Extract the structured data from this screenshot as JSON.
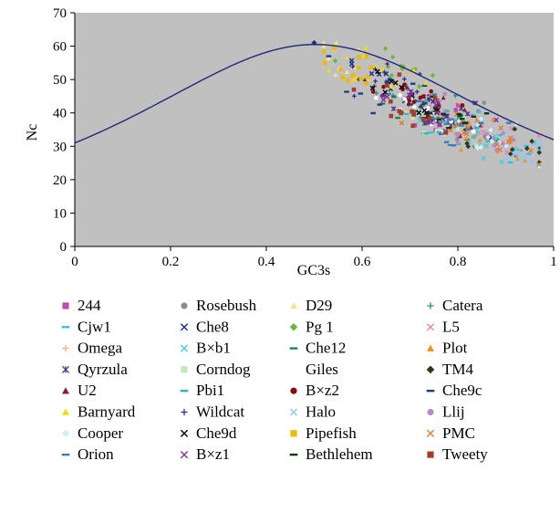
{
  "chart_data": {
    "type": "scatter",
    "title": "",
    "xlabel": "GC3s",
    "ylabel": "Nc",
    "xlim": [
      0,
      1
    ],
    "ylim": [
      0,
      70
    ],
    "x_ticks": [
      "0",
      "0.2",
      "0.4",
      "0.6",
      "0.8",
      "1"
    ],
    "y_ticks": [
      "0",
      "10",
      "20",
      "30",
      "40",
      "50",
      "60",
      "70"
    ],
    "x_tick_values": [
      0,
      0.2,
      0.4,
      0.6,
      0.8,
      1
    ],
    "y_tick_values": [
      0,
      10,
      20,
      30,
      40,
      50,
      60,
      70
    ],
    "background": "#c0c0c0",
    "grid": false,
    "legend_position": "bottom",
    "expected_curve": {
      "description": "Nc = 2 + s + 29/(s^2 + (1-s)^2)",
      "color": "#1f2a7a",
      "marker_x": 0.5,
      "marker_y": 61
    },
    "series": [
      {
        "name": "244",
        "marker": "square",
        "color": "#c44ca8",
        "x_center": 0.78,
        "y_center": 38,
        "count": 14
      },
      {
        "name": "Rosebush",
        "marker": "circle",
        "color": "#8c8c8c",
        "x_center": 0.8,
        "y_center": 36,
        "count": 14
      },
      {
        "name": "D29",
        "marker": "triangle",
        "color": "#f0e68c",
        "x_center": 0.56,
        "y_center": 56,
        "count": 14
      },
      {
        "name": "Catera",
        "marker": "plus",
        "color": "#2e8b8b",
        "x_center": 0.72,
        "y_center": 42,
        "count": 14
      },
      {
        "name": "Cjw1",
        "marker": "dash",
        "color": "#33c0e8",
        "x_center": 0.82,
        "y_center": 36,
        "count": 14
      },
      {
        "name": "Che8",
        "marker": "x",
        "color": "#1a2b8c",
        "x_center": 0.68,
        "y_center": 47,
        "count": 14
      },
      {
        "name": "Pg 1",
        "marker": "diamond",
        "color": "#6cb83c",
        "x_center": 0.66,
        "y_center": 52,
        "count": 14
      },
      {
        "name": "L5",
        "marker": "x",
        "color": "#f080b0",
        "x_center": 0.84,
        "y_center": 36,
        "count": 14
      },
      {
        "name": "Omega",
        "marker": "plus",
        "color": "#f0b080",
        "x_center": 0.7,
        "y_center": 46,
        "count": 14
      },
      {
        "name": "B×b1",
        "marker": "x",
        "color": "#50c8e0",
        "x_center": 0.9,
        "y_center": 30,
        "count": 14
      },
      {
        "name": "Che12",
        "marker": "dash",
        "color": "#208060",
        "x_center": 0.74,
        "y_center": 40,
        "count": 14
      },
      {
        "name": "Plot",
        "marker": "triangle",
        "color": "#f0901c",
        "x_center": 0.86,
        "y_center": 33,
        "count": 14
      },
      {
        "name": "Qyrzula",
        "marker": "star",
        "color": "#4a3c8c",
        "x_center": 0.76,
        "y_center": 40,
        "count": 14
      },
      {
        "name": "Corndog",
        "marker": "square",
        "color": "#c0e8b8",
        "x_center": 0.78,
        "y_center": 37,
        "count": 14
      },
      {
        "name": "Giles",
        "marker": "circle",
        "color": "#ffffff",
        "x_center": 0.74,
        "y_center": 40,
        "count": 14
      },
      {
        "name": "TM4",
        "marker": "diamond",
        "color": "#2a3a14",
        "x_center": 0.88,
        "y_center": 31,
        "count": 14
      },
      {
        "name": "U2",
        "marker": "triangle",
        "color": "#8c1c3c",
        "x_center": 0.72,
        "y_center": 43,
        "count": 14
      },
      {
        "name": "Pbi1",
        "marker": "dash",
        "color": "#30b8b0",
        "x_center": 0.8,
        "y_center": 36,
        "count": 14
      },
      {
        "name": "B×z2",
        "marker": "circle",
        "color": "#8c0c0c",
        "x_center": 0.7,
        "y_center": 44,
        "count": 14
      },
      {
        "name": "Che9c",
        "marker": "dash",
        "color": "#1c3c8c",
        "x_center": 0.68,
        "y_center": 45,
        "count": 14
      },
      {
        "name": "Barnyard",
        "marker": "triangle",
        "color": "#f0e000",
        "x_center": 0.6,
        "y_center": 54,
        "count": 14
      },
      {
        "name": "Wildcat",
        "marker": "plus",
        "color": "#2c2c8c",
        "x_center": 0.66,
        "y_center": 48,
        "count": 14
      },
      {
        "name": "Halo",
        "marker": "x",
        "color": "#90c8f0",
        "x_center": 0.92,
        "y_center": 29,
        "count": 14
      },
      {
        "name": "Llij",
        "marker": "circle",
        "color": "#b888c8",
        "x_center": 0.84,
        "y_center": 34,
        "count": 14
      },
      {
        "name": "Cooper",
        "marker": "diamond",
        "color": "#d0f0f8",
        "x_center": 0.86,
        "y_center": 32,
        "count": 14
      },
      {
        "name": "Che9d",
        "marker": "x",
        "color": "#000000",
        "x_center": 0.7,
        "y_center": 44,
        "count": 14
      },
      {
        "name": "Pipefish",
        "marker": "square",
        "color": "#f0b800",
        "x_center": 0.6,
        "y_center": 52,
        "count": 14
      },
      {
        "name": "PMC",
        "marker": "x",
        "color": "#e87830",
        "x_center": 0.82,
        "y_center": 35,
        "count": 14
      },
      {
        "name": "Orion",
        "marker": "dash",
        "color": "#3c7cbc",
        "x_center": 0.78,
        "y_center": 39,
        "count": 14
      },
      {
        "name": "B×z1",
        "marker": "x",
        "color": "#8c2c9c",
        "x_center": 0.72,
        "y_center": 42,
        "count": 14
      },
      {
        "name": "Bethlehem",
        "marker": "dash",
        "color": "#0c3c0c",
        "x_center": 0.76,
        "y_center": 39,
        "count": 14
      },
      {
        "name": "Tweety",
        "marker": "square",
        "color": "#a83c2c",
        "x_center": 0.7,
        "y_center": 41,
        "count": 14
      }
    ]
  }
}
